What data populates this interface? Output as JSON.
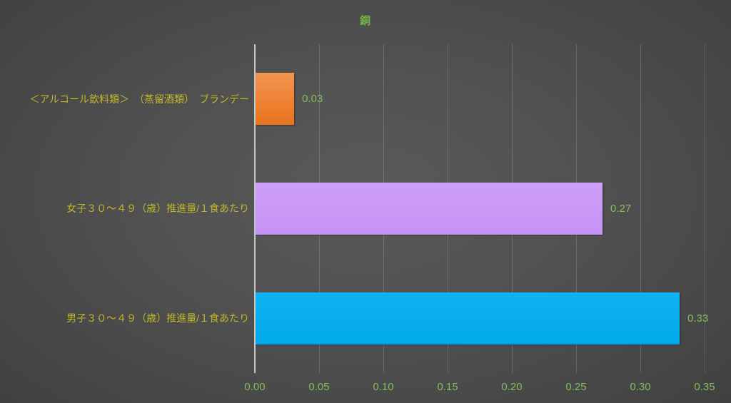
{
  "chart_data": {
    "type": "bar",
    "orientation": "horizontal",
    "title": "銅",
    "categories": [
      "＜アルコール飲料類＞　（蒸留酒類）　ブランデー",
      "女子３０～４９（歳）推進量/１食あたり",
      "男子３０～４９（歳）推進量/１食あたり"
    ],
    "values": [
      0.03,
      0.27,
      0.33
    ],
    "value_labels": [
      "0.03",
      "0.27",
      "0.33"
    ],
    "xlabel": "",
    "ylabel": "",
    "xlim": [
      0,
      0.35
    ],
    "x_ticks": [
      "0.00",
      "0.05",
      "0.10",
      "0.15",
      "0.20",
      "0.25",
      "0.30",
      "0.35"
    ],
    "x_tick_values": [
      0,
      0.05,
      0.1,
      0.15,
      0.2,
      0.25,
      0.3,
      0.35
    ],
    "grid": true,
    "legend": false
  },
  "colors": {
    "title": "#76B14B",
    "category_label": "#BFB829",
    "value_label": "#83BD5C",
    "axis_tick_label": "#83BD5C",
    "axis_line": "#C6C6C6",
    "gridline": "rgba(255,255,255,0.16)",
    "bars": [
      {
        "name": "orange",
        "top": "#F39551",
        "bottom": "#E8731C"
      },
      {
        "name": "purple",
        "top": "#CD9FF9",
        "bottom": "#C693F3"
      },
      {
        "name": "cyan",
        "top": "#12B2F2",
        "bottom": "#00A9EA"
      }
    ]
  }
}
